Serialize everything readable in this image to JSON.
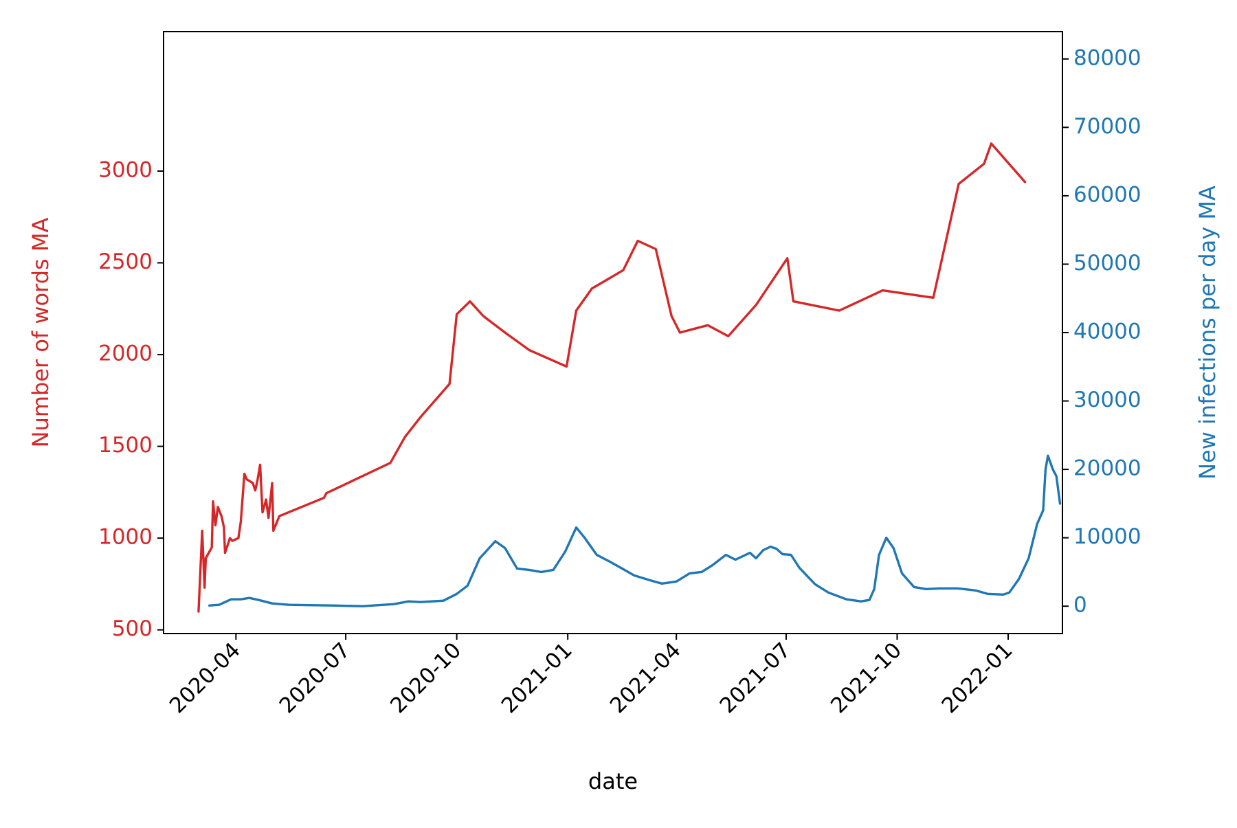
{
  "chart_data": {
    "type": "line",
    "xlabel": "date",
    "x_ticks": [
      "2020-04",
      "2020-07",
      "2020-10",
      "2021-01",
      "2021-04",
      "2021-07",
      "2021-10",
      "2022-01"
    ],
    "xlim": [
      "2020-02-01",
      "2022-02-15"
    ],
    "y_left": {
      "label": "Number of words MA",
      "color": "#d62728",
      "ticks": [
        500,
        1000,
        1500,
        2000,
        2500,
        3000
      ],
      "ylim": [
        480,
        3760
      ]
    },
    "y_right": {
      "label": "New infections per day MA",
      "color": "#1f77b4",
      "ticks": [
        0,
        10000,
        20000,
        30000,
        40000,
        50000,
        60000,
        70000,
        80000
      ],
      "ylim": [
        -4000,
        84000
      ]
    },
    "grid": false,
    "series": [
      {
        "axis": "left",
        "color": "#d62728",
        "points": [
          [
            "2020-03-01",
            600
          ],
          [
            "2020-03-04",
            1040
          ],
          [
            "2020-03-06",
            730
          ],
          [
            "2020-03-07",
            890
          ],
          [
            "2020-03-12",
            950
          ],
          [
            "2020-03-13",
            1200
          ],
          [
            "2020-03-15",
            1070
          ],
          [
            "2020-03-17",
            1170
          ],
          [
            "2020-03-20",
            1120
          ],
          [
            "2020-03-22",
            1060
          ],
          [
            "2020-03-23",
            920
          ],
          [
            "2020-03-27",
            1000
          ],
          [
            "2020-03-29",
            985
          ],
          [
            "2020-04-03",
            1000
          ],
          [
            "2020-04-05",
            1090
          ],
          [
            "2020-04-08",
            1350
          ],
          [
            "2020-04-10",
            1320
          ],
          [
            "2020-04-15",
            1300
          ],
          [
            "2020-04-17",
            1260
          ],
          [
            "2020-04-19",
            1320
          ],
          [
            "2020-04-21",
            1400
          ],
          [
            "2020-04-23",
            1140
          ],
          [
            "2020-04-26",
            1210
          ],
          [
            "2020-04-28",
            1110
          ],
          [
            "2020-05-01",
            1300
          ],
          [
            "2020-05-02",
            1040
          ],
          [
            "2020-05-07",
            1120
          ],
          [
            "2020-06-13",
            1220
          ],
          [
            "2020-06-15",
            1245
          ],
          [
            "2020-08-07",
            1410
          ],
          [
            "2020-08-19",
            1550
          ],
          [
            "2020-09-01",
            1660
          ],
          [
            "2020-09-25",
            1840
          ],
          [
            "2020-10-01",
            2220
          ],
          [
            "2020-10-12",
            2290
          ],
          [
            "2020-10-23",
            2210
          ],
          [
            "2020-11-10",
            2120
          ],
          [
            "2020-11-30",
            2025
          ],
          [
            "2020-12-31",
            1935
          ],
          [
            "2021-01-08",
            2240
          ],
          [
            "2021-01-21",
            2360
          ],
          [
            "2021-02-16",
            2460
          ],
          [
            "2021-02-28",
            2620
          ],
          [
            "2021-03-15",
            2575
          ],
          [
            "2021-03-28",
            2210
          ],
          [
            "2021-04-04",
            2120
          ],
          [
            "2021-04-27",
            2160
          ],
          [
            "2021-05-14",
            2100
          ],
          [
            "2021-06-06",
            2270
          ],
          [
            "2021-07-02",
            2525
          ],
          [
            "2021-07-07",
            2290
          ],
          [
            "2021-08-14",
            2240
          ],
          [
            "2021-09-19",
            2350
          ],
          [
            "2021-10-31",
            2310
          ],
          [
            "2021-11-21",
            2930
          ],
          [
            "2021-12-12",
            3040
          ],
          [
            "2021-12-18",
            3150
          ],
          [
            "2022-01-15",
            2940
          ]
        ]
      },
      {
        "axis": "right",
        "color": "#1f77b4",
        "points": [
          [
            "2020-03-10",
            100
          ],
          [
            "2020-03-18",
            200
          ],
          [
            "2020-03-28",
            1000
          ],
          [
            "2020-04-05",
            1000
          ],
          [
            "2020-04-12",
            1200
          ],
          [
            "2020-04-20",
            900
          ],
          [
            "2020-05-01",
            400
          ],
          [
            "2020-05-15",
            200
          ],
          [
            "2020-06-01",
            150
          ],
          [
            "2020-06-20",
            100
          ],
          [
            "2020-07-15",
            0
          ],
          [
            "2020-08-10",
            300
          ],
          [
            "2020-08-22",
            700
          ],
          [
            "2020-09-01",
            600
          ],
          [
            "2020-09-20",
            800
          ],
          [
            "2020-10-01",
            1800
          ],
          [
            "2020-10-10",
            3000
          ],
          [
            "2020-10-20",
            7000
          ],
          [
            "2020-11-02",
            9500
          ],
          [
            "2020-11-10",
            8500
          ],
          [
            "2020-11-20",
            5500
          ],
          [
            "2020-11-30",
            5300
          ],
          [
            "2020-12-10",
            5000
          ],
          [
            "2020-12-20",
            5300
          ],
          [
            "2020-12-30",
            8000
          ],
          [
            "2021-01-08",
            11500
          ],
          [
            "2021-01-15",
            10000
          ],
          [
            "2021-01-25",
            7500
          ],
          [
            "2021-02-05",
            6500
          ],
          [
            "2021-02-15",
            5500
          ],
          [
            "2021-02-25",
            4500
          ],
          [
            "2021-03-10",
            3800
          ],
          [
            "2021-03-20",
            3300
          ],
          [
            "2021-04-01",
            3600
          ],
          [
            "2021-04-12",
            4800
          ],
          [
            "2021-04-22",
            5000
          ],
          [
            "2021-05-01",
            6000
          ],
          [
            "2021-05-12",
            7500
          ],
          [
            "2021-05-20",
            6800
          ],
          [
            "2021-06-01",
            7800
          ],
          [
            "2021-06-06",
            7000
          ],
          [
            "2021-06-12",
            8200
          ],
          [
            "2021-06-18",
            8700
          ],
          [
            "2021-06-23",
            8400
          ],
          [
            "2021-06-28",
            7600
          ],
          [
            "2021-07-05",
            7500
          ],
          [
            "2021-07-12",
            5600
          ],
          [
            "2021-07-25",
            3200
          ],
          [
            "2021-08-05",
            2000
          ],
          [
            "2021-08-20",
            1000
          ],
          [
            "2021-09-01",
            700
          ],
          [
            "2021-09-08",
            900
          ],
          [
            "2021-09-12",
            2500
          ],
          [
            "2021-09-16",
            7500
          ],
          [
            "2021-09-22",
            10000
          ],
          [
            "2021-09-28",
            8500
          ],
          [
            "2021-10-05",
            4800
          ],
          [
            "2021-10-15",
            2800
          ],
          [
            "2021-10-25",
            2500
          ],
          [
            "2021-11-05",
            2600
          ],
          [
            "2021-11-20",
            2600
          ],
          [
            "2021-12-05",
            2300
          ],
          [
            "2021-12-15",
            1800
          ],
          [
            "2021-12-28",
            1700
          ],
          [
            "2022-01-02",
            2000
          ],
          [
            "2022-01-10",
            4000
          ],
          [
            "2022-01-18",
            7000
          ],
          [
            "2022-01-25",
            12000
          ],
          [
            "2022-01-30",
            14000
          ],
          [
            "2022-02-01",
            20000
          ],
          [
            "2022-02-03",
            22000
          ],
          [
            "2022-02-05",
            21000
          ],
          [
            "2022-02-07",
            20000
          ],
          [
            "2022-02-10",
            19000
          ],
          [
            "2022-02-13",
            15000
          ]
        ]
      }
    ]
  }
}
